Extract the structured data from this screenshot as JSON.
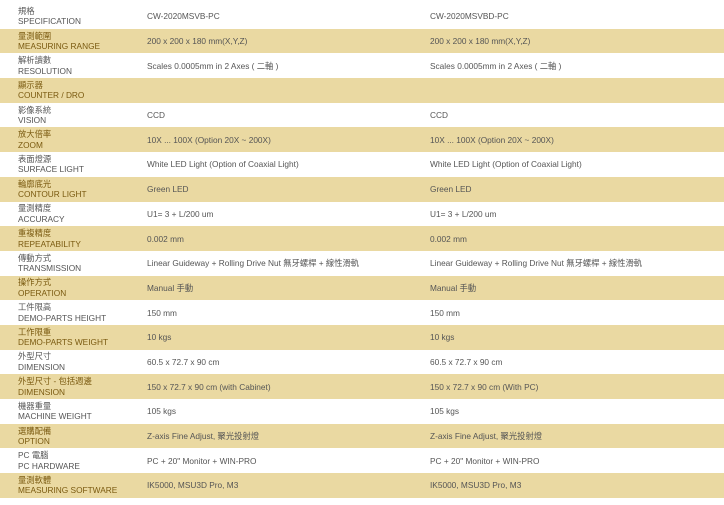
{
  "rows": [
    {
      "zh": "規格",
      "en": "SPECIFICATION",
      "a": "CW-2020MSVB-PC",
      "b": "CW-2020MSVBD-PC"
    },
    {
      "zh": "量測範圍",
      "en": "MEASURING RANGE",
      "a": "200 x 200 x 180 mm(X,Y,Z)",
      "b": "200 x 200 x 180 mm(X,Y,Z)"
    },
    {
      "zh": "解析讀數",
      "en": "RESOLUTION",
      "a": "Scales 0.0005mm in 2 Axes ( 二軸 )",
      "b": "Scales 0.0005mm in 2 Axes ( 二軸 )"
    },
    {
      "zh": "顯示器",
      "en": "COUNTER / DRO",
      "a": "",
      "b": ""
    },
    {
      "zh": "影像系統",
      "en": "VISION",
      "a": "CCD",
      "b": "CCD"
    },
    {
      "zh": "放大倍率",
      "en": "ZOOM",
      "a": "10X ... 100X (Option 20X ~ 200X)",
      "b": "10X ... 100X (Option 20X ~ 200X)"
    },
    {
      "zh": "表面燈源",
      "en": "SURFACE LIGHT",
      "a": "White LED Light (Option of Coaxial Light)",
      "b": "White LED Light (Option of Coaxial Light)"
    },
    {
      "zh": "輪廓底光",
      "en": "CONTOUR LIGHT",
      "a": "Green LED",
      "b": "Green LED"
    },
    {
      "zh": "量測精度",
      "en": "ACCURACY",
      "a": "U1= 3 + L/200 um",
      "b": "U1= 3 + L/200 um"
    },
    {
      "zh": "重複精度",
      "en": "REPEATABILITY",
      "a": "0.002 mm",
      "b": "0.002 mm"
    },
    {
      "zh": "傳動方式",
      "en": "TRANSMISSION",
      "a": "Linear Guideway + Rolling Drive Nut 無牙螺桿 + 線性滑軌",
      "b": "Linear Guideway + Rolling Drive Nut 無牙螺桿 + 線性滑軌"
    },
    {
      "zh": "操作方式",
      "en": "OPERATION",
      "a": "Manual 手動",
      "b": "Manual 手動"
    },
    {
      "zh": "工件限高",
      "en": "DEMO-PARTS HEIGHT",
      "a": "150 mm",
      "b": "150 mm"
    },
    {
      "zh": "工作限重",
      "en": "DEMO-PARTS WEIGHT",
      "a": "10 kgs",
      "b": "10 kgs"
    },
    {
      "zh": "外型尺寸",
      "en": "DIMENSION",
      "a": "60.5 x 72.7 x 90 cm",
      "b": "60.5 x 72.7 x 90 cm"
    },
    {
      "zh": "外型尺寸 - 包括週邊",
      "en": "DIMENSION",
      "a": "150 x 72.7 x 90 cm (with Cabinet)",
      "b": "150 x 72.7 x 90 cm (With PC)"
    },
    {
      "zh": "機器重量",
      "en": "MACHINE WEIGHT",
      "a": "105 kgs",
      "b": "105 kgs"
    },
    {
      "zh": "選購配備",
      "en": "OPTION",
      "a": "Z-axis Fine Adjust, 聚光投射燈",
      "b": "Z-axis Fine Adjust, 聚光投射燈"
    },
    {
      "zh": "PC 電腦",
      "en": "PC HARDWARE",
      "a": "PC + 20\" Monitor + WIN-PRO",
      "b": "PC + 20\" Monitor + WIN-PRO"
    },
    {
      "zh": "量測軟體",
      "en": "MEASURING SOFTWARE",
      "a": "IK5000, MSU3D Pro, M3",
      "b": "IK5000, MSU3D Pro, M3"
    }
  ],
  "colors": {
    "highlight": "#ead9a2"
  }
}
